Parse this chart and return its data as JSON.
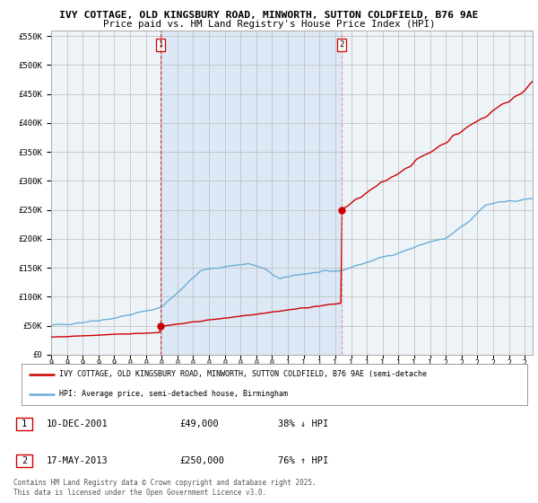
{
  "title_line1": "IVY COTTAGE, OLD KINGSBURY ROAD, MINWORTH, SUTTON COLDFIELD, B76 9AE",
  "title_line2": "Price paid vs. HM Land Registry's House Price Index (HPI)",
  "legend_line1": "IVY COTTAGE, OLD KINGSBURY ROAD, MINWORTH, SUTTON COLDFIELD, B76 9AE (semi-detache",
  "legend_line2": "HPI: Average price, semi-detached house, Birmingham",
  "sale1_date": "10-DEC-2001",
  "sale1_price": 49000,
  "sale1_hpi": "38% ↓ HPI",
  "sale2_date": "17-MAY-2013",
  "sale2_price": 250000,
  "sale2_hpi": "76% ↑ HPI",
  "sale1_year": 2001.94,
  "sale2_year": 2013.38,
  "footer": "Contains HM Land Registry data © Crown copyright and database right 2025.\nThis data is licensed under the Open Government Licence v3.0.",
  "ylim": [
    0,
    560000
  ],
  "xlim_start": 1995.0,
  "xlim_end": 2025.5,
  "hpi_color": "#6baed6",
  "property_color": "#cc0000",
  "background_color": "#ffffff",
  "plot_bg_color": "#eef3f8",
  "shade_color": "#dce8f5",
  "grid_color": "#bbbbbb"
}
